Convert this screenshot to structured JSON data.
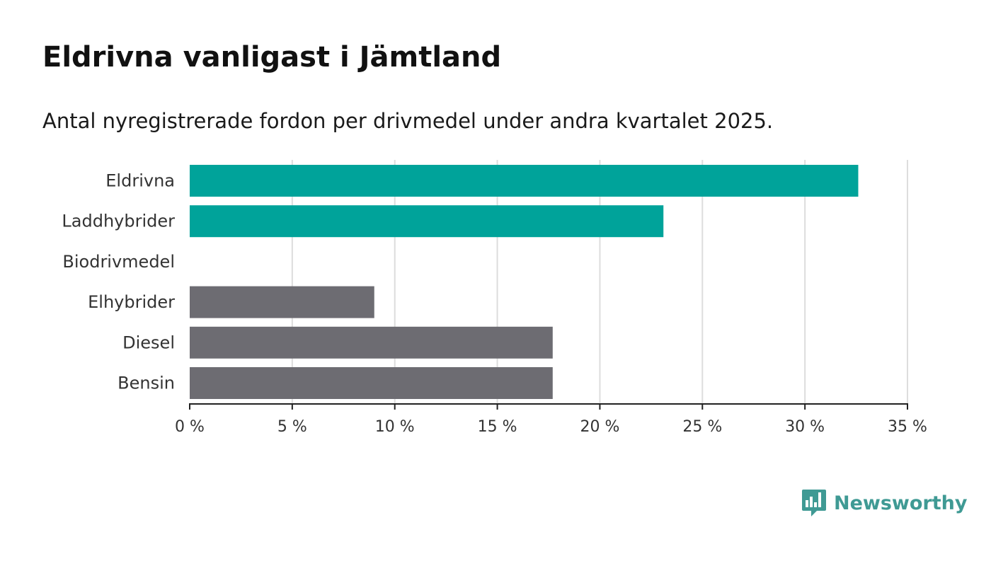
{
  "header": {
    "title": "Eldrivna vanligast i Jämtland",
    "subtitle": "Antal nyregistrerade fordon per drivmedel under andra kvartalet 2025."
  },
  "brand": {
    "name": "Newsworthy",
    "color": "#3f9a94",
    "icon": "newsworthy-logo-icon"
  },
  "chart_data": {
    "type": "bar",
    "orientation": "horizontal",
    "categories": [
      "Eldrivna",
      "Laddhybrider",
      "Biodrivmedel",
      "Elhybrider",
      "Diesel",
      "Bensin"
    ],
    "values": [
      32.6,
      23.1,
      0,
      9.0,
      17.7,
      17.7
    ],
    "colors": [
      "#00a39a",
      "#00a39a",
      "#00a39a",
      "#6d6c72",
      "#6d6c72",
      "#6d6c72"
    ],
    "xlim": [
      0,
      35
    ],
    "xticks": [
      0,
      5,
      10,
      15,
      20,
      25,
      30,
      35
    ],
    "xtick_labels": [
      "0 %",
      "5 %",
      "10 %",
      "15 %",
      "20 %",
      "25 %",
      "30 %",
      "35 %"
    ],
    "grid": "vertical",
    "xlabel": "",
    "ylabel": ""
  }
}
